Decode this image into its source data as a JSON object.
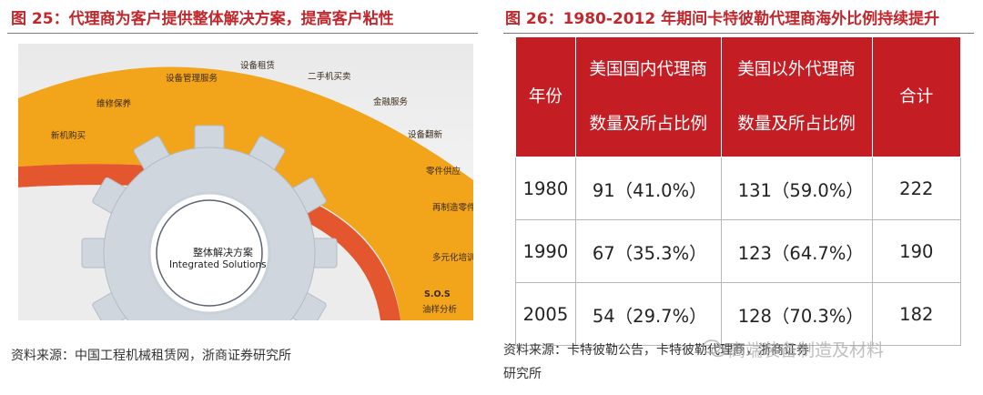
{
  "left_figure": {
    "title": "图 25：代理商为客户提供整体解决方案，提高客户粘性",
    "services": [
      "设备租赁",
      "二手机买卖",
      "设备管理服务",
      "金融服务",
      "维修保养",
      "设备翻新",
      "新机购买",
      "零件供应",
      "再制造零件",
      "多元化培训",
      "S.O.S",
      "油样分析"
    ],
    "core_label_cn": "整体解决方案",
    "core_label_en": "Integrated Solutions",
    "source": "资料来源：中国工程机械租赁网，浙商证券研究所"
  },
  "right_table": {
    "title": "图 26：1980-2012 年期间卡特彼勒代理商海外比例持续提升",
    "headers": {
      "year": "年份",
      "domestic_line1": "美国国内代理商",
      "domestic_line2": "数量及所占比例",
      "overseas_line1": "美国以外代理商",
      "overseas_line2": "数量及所占比例",
      "total": "合计"
    },
    "rows": [
      {
        "year": "1980",
        "domestic": "91（41.0%）",
        "overseas": "131（59.0%）",
        "total": "222"
      },
      {
        "year": "1990",
        "domestic": "67（35.3%）",
        "overseas": "123（64.7%）",
        "total": "190"
      },
      {
        "year": "2005",
        "domestic": "54（29.7%）",
        "overseas": "128（70.3%）",
        "total": "182"
      }
    ],
    "source_line1": "资料来源：卡特彼勒公告，卡特彼勒代理商，浙商证券",
    "source_line2": "研究所"
  },
  "watermark": "高端装备制造及材料",
  "colors": {
    "accent_red": "#c41e24",
    "arc_orange": "#f0a21a",
    "arc_red": "#e4572e"
  }
}
